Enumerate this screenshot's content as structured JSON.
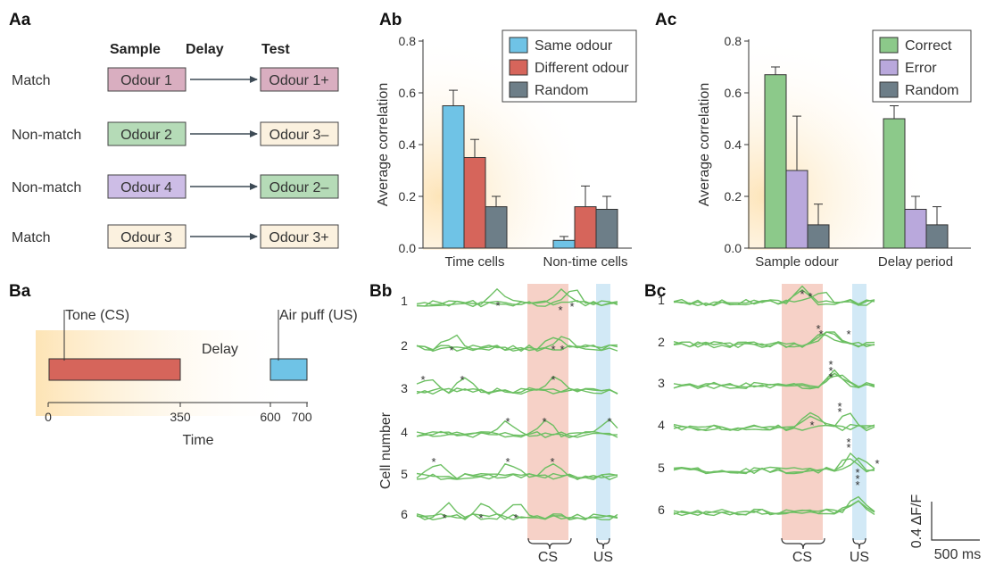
{
  "panels": {
    "Aa": "Aa",
    "Ab": "Ab",
    "Ac": "Ac",
    "Ba": "Ba",
    "Bb": "Bb",
    "Bc": "Bc"
  },
  "aa": {
    "headers": {
      "sample": "Sample",
      "delay": "Delay",
      "test": "Test"
    },
    "rows": [
      {
        "label": "Match",
        "sample": "Odour 1",
        "test": "Odour 1+",
        "sample_color": "#d9aec0",
        "test_color": "#d9aec0"
      },
      {
        "label": "Non-match",
        "sample": "Odour 2",
        "test": "Odour 3–",
        "sample_color": "#b5dbb7",
        "test_color": "#fbf1df"
      },
      {
        "label": "Non-match",
        "sample": "Odour 4",
        "test": "Odour 2–",
        "sample_color": "#cdbde6",
        "test_color": "#b5dbb7"
      },
      {
        "label": "Match",
        "sample": "Odour 3",
        "test": "Odour 3+",
        "sample_color": "#fbf1df",
        "test_color": "#fbf1df"
      }
    ]
  },
  "ba": {
    "tone_label": "Tone (CS)",
    "airpuff_label": "Air puff (US)",
    "delay_label": "Delay",
    "xlabel": "Time",
    "ticks": [
      "0",
      "350",
      "600",
      "700"
    ],
    "tone_color": "#d6655b",
    "airpuff_color": "#6fc3e6"
  },
  "traces": {
    "ylabel": "Cell number",
    "cells": [
      "1",
      "2",
      "3",
      "4",
      "5",
      "6"
    ],
    "cs_label": "CS",
    "us_label": "US",
    "scale_y": "0.4 ΔF/F",
    "scale_x": "500 ms",
    "trace_color": "#6cbf62",
    "cs_color": "#f4c9bd",
    "us_color": "#cde7f5"
  },
  "chart_data": [
    {
      "id": "Ab",
      "type": "bar",
      "categories": [
        "Time cells",
        "Non-time cells"
      ],
      "series": [
        {
          "name": "Same odour",
          "values": [
            0.55,
            0.03
          ],
          "errors": [
            0.06,
            0.015
          ],
          "color": "#6fc3e6"
        },
        {
          "name": "Different odour",
          "values": [
            0.35,
            0.16
          ],
          "errors": [
            0.07,
            0.08
          ],
          "color": "#d6655b"
        },
        {
          "name": "Random",
          "values": [
            0.16,
            0.15
          ],
          "errors": [
            0.04,
            0.05
          ],
          "color": "#6d7e88"
        }
      ],
      "ylabel": "Average correlation",
      "ylim": [
        0,
        0.8
      ],
      "yticks": [
        "0.0",
        "0.2",
        "0.4",
        "0.6",
        "0.8"
      ],
      "legend": "top-right"
    },
    {
      "id": "Ac",
      "type": "bar",
      "categories": [
        "Sample odour",
        "Delay period"
      ],
      "series": [
        {
          "name": "Correct",
          "values": [
            0.67,
            0.5
          ],
          "errors": [
            0.03,
            0.05
          ],
          "color": "#8cc98a"
        },
        {
          "name": "Error",
          "values": [
            0.3,
            0.15
          ],
          "errors": [
            0.21,
            0.05
          ],
          "color": "#b9a8dc"
        },
        {
          "name": "Random",
          "values": [
            0.09,
            0.09
          ],
          "errors": [
            0.08,
            0.07
          ],
          "color": "#6d7e88"
        }
      ],
      "ylabel": "Average correlation",
      "ylim": [
        0,
        0.8
      ],
      "yticks": [
        "0.0",
        "0.2",
        "0.4",
        "0.6",
        "0.8"
      ],
      "legend": "top-right"
    }
  ]
}
